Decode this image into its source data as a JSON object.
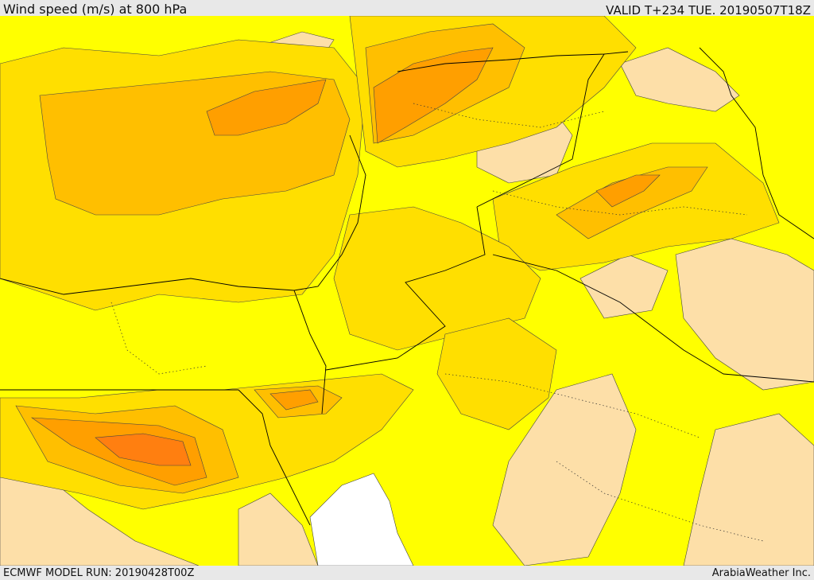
{
  "header": {
    "title": "Wind speed (m/s) at 800 hPa",
    "valid": "VALID T+234 TUE. 20190507T18Z"
  },
  "footer": {
    "model_run": "ECMWF MODEL RUN: 20190428T00Z",
    "credit": "ArabiaWeather Inc."
  },
  "map": {
    "variable": "wind speed",
    "level": "800 hPa",
    "colors": {
      "calm": "#ffffff",
      "light": "#fddfa8",
      "low": "#ffff00",
      "moderate": "#ffdf00",
      "fresh": "#ffbf00",
      "strong": "#ff9f00",
      "very_strong": "#ff7f10",
      "border": "#000000"
    }
  }
}
